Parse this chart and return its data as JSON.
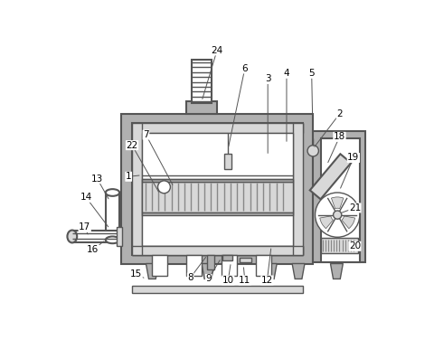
{
  "bg_color": "#ffffff",
  "lc": "#555555",
  "gray": "#b0b0b0",
  "lgray": "#d8d8d8",
  "dgray": "#888888",
  "white": "#ffffff",
  "hatch_gray": "#cccccc"
}
